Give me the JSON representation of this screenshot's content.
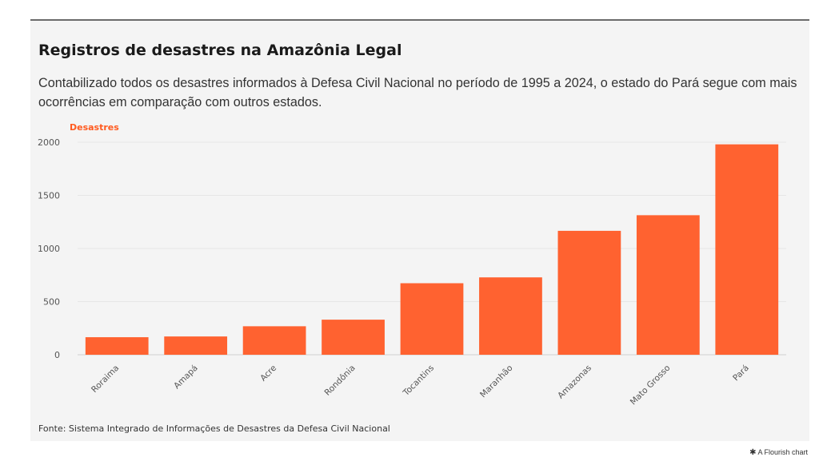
{
  "title": "Registros de desastres na Amazônia Legal",
  "subtitle": "Contabilizado todos os desastres informados à Defesa Civil Nacional no período de 1995 a 2024, o estado do Pará segue com mais ocorrências em comparação com outros estados.",
  "source": "Fonte: Sistema Integrado de Informações de Desastres da Defesa Civil Nacional",
  "credit": "A Flourish chart",
  "chart_data": {
    "type": "bar",
    "ylabel": "Desastres",
    "xlabel": "",
    "categories": [
      "Roraima",
      "Amapá",
      "Acre",
      "Rondônia",
      "Tocantins",
      "Maranhão",
      "Amazonas",
      "Mato Grosso",
      "Pará"
    ],
    "values": [
      165,
      172,
      268,
      330,
      673,
      728,
      1166,
      1313,
      1980
    ],
    "ylim": [
      0,
      2000
    ],
    "yticks": [
      0,
      500,
      1000,
      1500,
      2000
    ],
    "grid": true,
    "bar_color": "#ff6230",
    "ylabel_color": "#ff5a1f"
  }
}
